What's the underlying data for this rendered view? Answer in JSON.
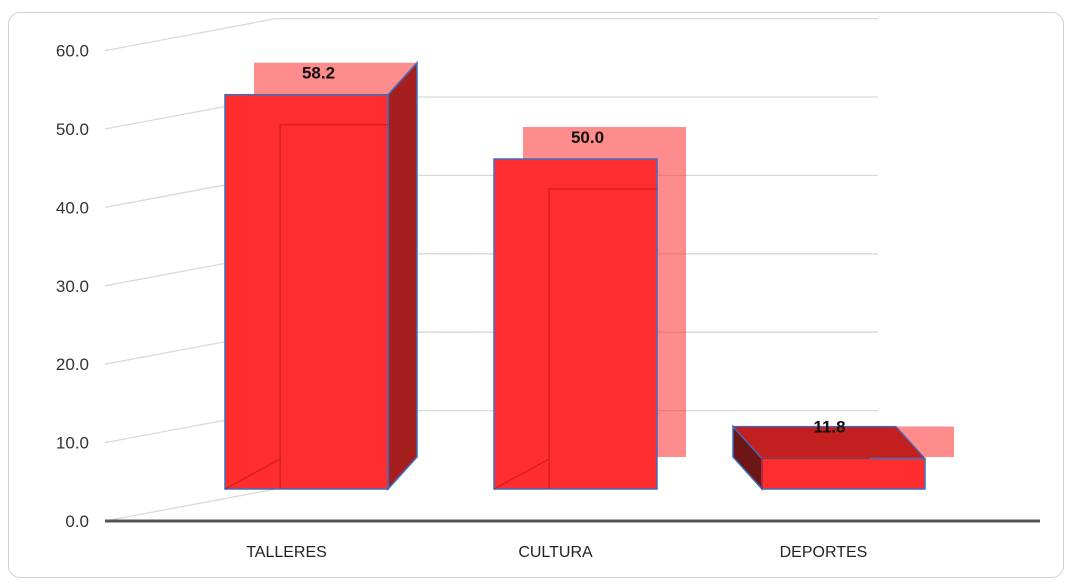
{
  "chart_data": {
    "type": "bar",
    "categories": [
      "TALLERES",
      "CULTURA",
      "DEPORTES"
    ],
    "values": [
      58.2,
      50.0,
      11.8
    ],
    "value_labels": [
      "58.2",
      "50.0",
      "11.8"
    ],
    "ylim": [
      0,
      60
    ],
    "yticks": [
      "0.0",
      "10.0",
      "20.0",
      "30.0",
      "40.0",
      "50.0",
      "60.0"
    ],
    "grid": true,
    "legend": "none",
    "colors": {
      "bar": "#ff2d2d",
      "bar_side": "#a51f1f",
      "bar_edge": "#3a6fc4"
    }
  }
}
